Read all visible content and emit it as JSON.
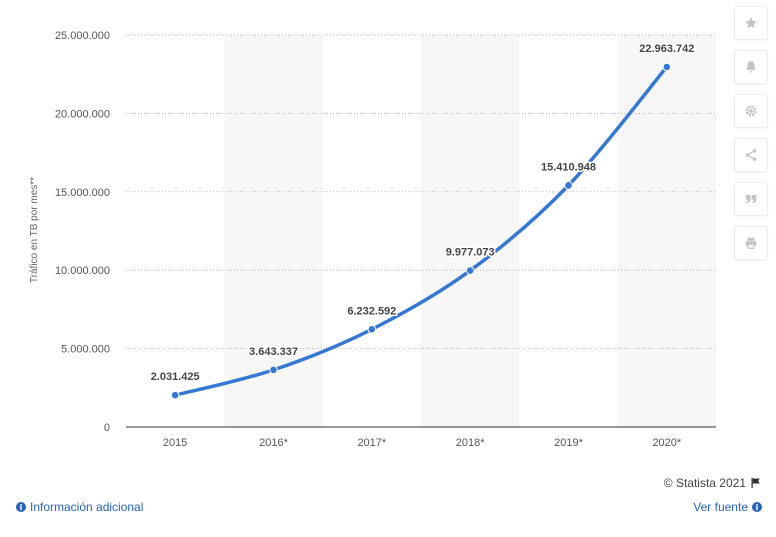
{
  "chart_data": {
    "type": "line",
    "categories": [
      "2015",
      "2016*",
      "2017*",
      "2018*",
      "2019*",
      "2020*"
    ],
    "values": [
      2031425,
      3643337,
      6232592,
      9977073,
      15410948,
      22963742
    ],
    "value_labels": [
      "2.031.425",
      "3.643.337",
      "6.232.592",
      "9.977.073",
      "15.410.948",
      "22.963.742"
    ],
    "ylabel": "Tráfico en TB por mes**",
    "ylim": [
      0,
      25000000
    ],
    "yticks": [
      0,
      5000000,
      10000000,
      15000000,
      20000000,
      25000000
    ],
    "ytick_labels": [
      "0",
      "5.000.000",
      "10.000.000",
      "15.000.000",
      "20.000.000",
      "25.000.000"
    ],
    "grid": true,
    "line_color": "#3478d4",
    "band_color": "#f7f7f7"
  },
  "footer": {
    "copyright": "© Statista 2021",
    "info_label": "Información adicional",
    "source_label": "Ver fuente"
  },
  "toolbar": {
    "icons": [
      "star-icon",
      "bell-icon",
      "gear-icon",
      "share-icon",
      "quote-icon",
      "print-icon"
    ]
  }
}
